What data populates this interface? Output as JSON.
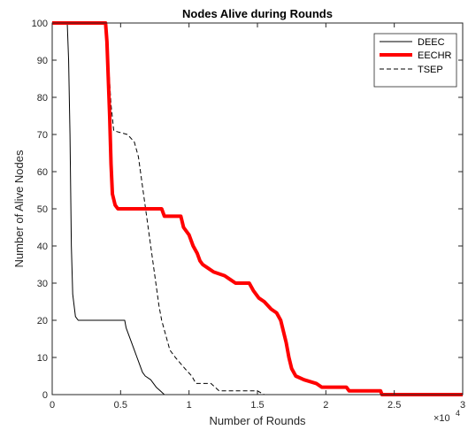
{
  "chart_data": {
    "type": "line",
    "title": "Nodes Alive during Rounds",
    "xlabel": "Number of Rounds",
    "ylabel": "Number of Alive Nodes",
    "xlim": [
      0,
      30000
    ],
    "ylim": [
      0,
      100
    ],
    "x_ticks": [
      "0",
      "0.5",
      "1",
      "1.5",
      "2",
      "2.5",
      "3"
    ],
    "x_tick_values": [
      0,
      5000,
      10000,
      15000,
      20000,
      25000,
      30000
    ],
    "x_exponent": {
      "base": "×10",
      "power": "4"
    },
    "y_ticks": [
      "0",
      "10",
      "20",
      "30",
      "40",
      "50",
      "60",
      "70",
      "80",
      "90",
      "100"
    ],
    "y_tick_values": [
      0,
      10,
      20,
      30,
      40,
      50,
      60,
      70,
      80,
      90,
      100
    ],
    "grid": false,
    "legend_position": "top-right",
    "series": [
      {
        "name": "DEEC",
        "color": "#000000",
        "style": "solid",
        "points": [
          [
            0,
            100
          ],
          [
            1100,
            100
          ],
          [
            1200,
            90
          ],
          [
            1300,
            70
          ],
          [
            1400,
            40
          ],
          [
            1500,
            27
          ],
          [
            1700,
            21
          ],
          [
            1900,
            20
          ],
          [
            2500,
            20
          ],
          [
            5300,
            20
          ],
          [
            5400,
            18
          ],
          [
            5600,
            16
          ],
          [
            5800,
            14
          ],
          [
            6000,
            12
          ],
          [
            6200,
            10
          ],
          [
            6400,
            8
          ],
          [
            6600,
            6
          ],
          [
            6800,
            5
          ],
          [
            7200,
            4
          ],
          [
            7600,
            2
          ],
          [
            7900,
            1
          ],
          [
            8200,
            0
          ],
          [
            30000,
            0
          ]
        ]
      },
      {
        "name": "EECHR",
        "color": "#ff0000",
        "style": "solid-thick",
        "points": [
          [
            0,
            100
          ],
          [
            3900,
            100
          ],
          [
            4000,
            95
          ],
          [
            4100,
            85
          ],
          [
            4200,
            75
          ],
          [
            4300,
            62
          ],
          [
            4400,
            54
          ],
          [
            4600,
            51
          ],
          [
            4800,
            50
          ],
          [
            8000,
            50
          ],
          [
            8200,
            48
          ],
          [
            9400,
            48
          ],
          [
            9600,
            45
          ],
          [
            10000,
            43
          ],
          [
            10300,
            40
          ],
          [
            10600,
            38
          ],
          [
            10800,
            36
          ],
          [
            11000,
            35
          ],
          [
            11400,
            34
          ],
          [
            11800,
            33
          ],
          [
            12600,
            32
          ],
          [
            13000,
            31
          ],
          [
            13400,
            30
          ],
          [
            14400,
            30
          ],
          [
            14700,
            28
          ],
          [
            15100,
            26
          ],
          [
            15500,
            25
          ],
          [
            16000,
            23
          ],
          [
            16400,
            22
          ],
          [
            16700,
            20
          ],
          [
            16900,
            17
          ],
          [
            17100,
            14
          ],
          [
            17300,
            10
          ],
          [
            17500,
            7
          ],
          [
            17800,
            5
          ],
          [
            18400,
            4
          ],
          [
            19300,
            3
          ],
          [
            19700,
            2
          ],
          [
            21500,
            2
          ],
          [
            21700,
            1
          ],
          [
            24000,
            1
          ],
          [
            24100,
            0
          ],
          [
            30000,
            0
          ]
        ]
      },
      {
        "name": "TSEP",
        "color": "#000000",
        "style": "dashed",
        "points": [
          [
            0,
            100
          ],
          [
            3800,
            100
          ],
          [
            4100,
            90
          ],
          [
            4300,
            78
          ],
          [
            4500,
            71
          ],
          [
            5500,
            70
          ],
          [
            6000,
            68
          ],
          [
            6300,
            64
          ],
          [
            6600,
            56
          ],
          [
            6900,
            48
          ],
          [
            7200,
            40
          ],
          [
            7500,
            32
          ],
          [
            7800,
            24
          ],
          [
            8000,
            20
          ],
          [
            8300,
            16
          ],
          [
            8600,
            12
          ],
          [
            9000,
            10
          ],
          [
            9700,
            7
          ],
          [
            10200,
            5
          ],
          [
            10500,
            3
          ],
          [
            11600,
            3
          ],
          [
            12200,
            1
          ],
          [
            15000,
            1
          ],
          [
            15500,
            0
          ],
          [
            30000,
            0
          ]
        ]
      }
    ]
  }
}
